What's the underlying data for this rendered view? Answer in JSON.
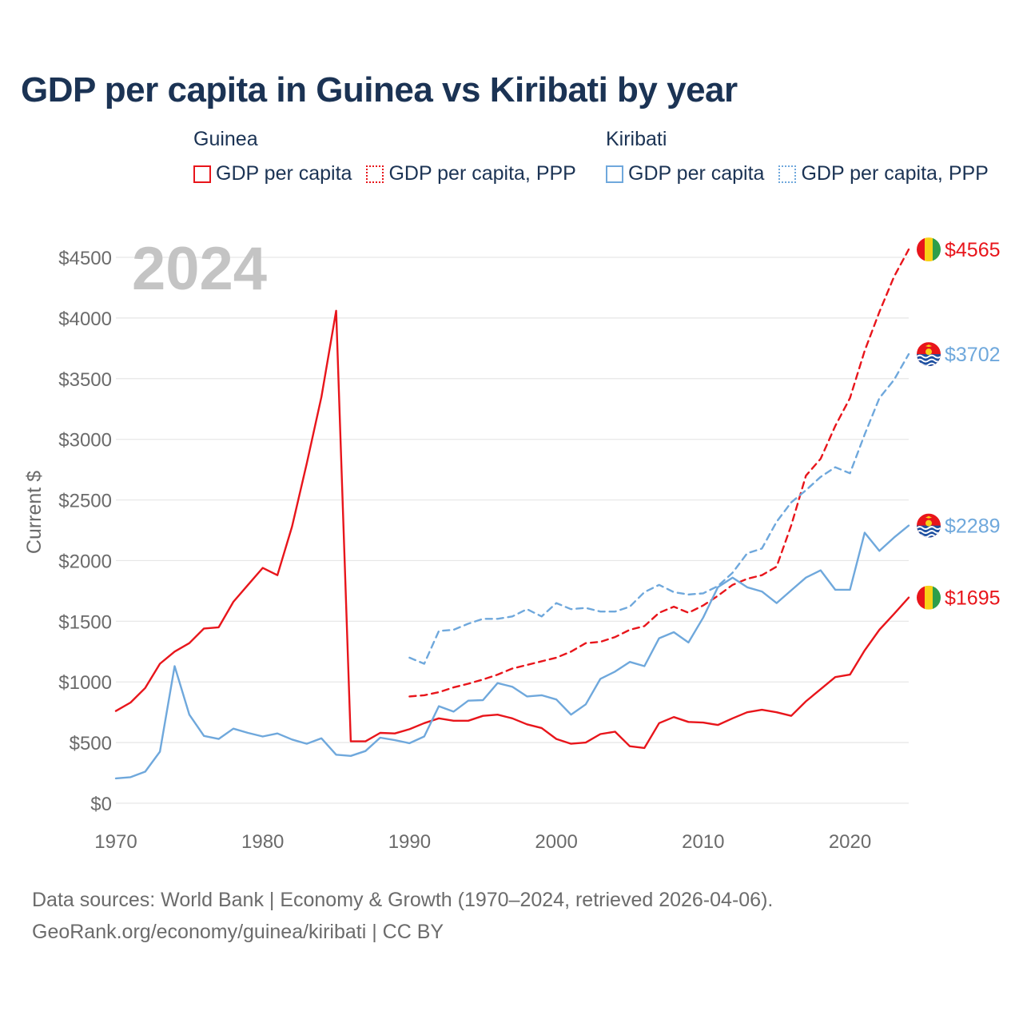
{
  "title": "GDP per capita in Guinea vs Kiribati by year",
  "legend": {
    "groups": [
      {
        "title": "Guinea",
        "items": [
          {
            "label": "GDP per capita",
            "color": "#e8151b",
            "style": "solid"
          },
          {
            "label": "GDP per capita, PPP",
            "color": "#e8151b",
            "style": "dotted"
          }
        ]
      },
      {
        "title": "Kiribati",
        "items": [
          {
            "label": "GDP per capita",
            "color": "#6fa8dc",
            "style": "solid"
          },
          {
            "label": "GDP per capita, PPP",
            "color": "#6fa8dc",
            "style": "dotted"
          }
        ]
      }
    ]
  },
  "year_label": "2024",
  "footer": {
    "line1": "Data sources: World Bank | Economy & Growth (1970–2024, retrieved 2026-04-06).",
    "line2": "GeoRank.org/economy/guinea/kiribati | CC BY"
  },
  "chart_data": {
    "type": "line",
    "title": "GDP per capita in Guinea vs Kiribati by year",
    "xlabel": "",
    "ylabel": "Current $",
    "xlim": [
      1970,
      2024
    ],
    "ylim": [
      0,
      4500
    ],
    "x_ticks": [
      1970,
      1980,
      1990,
      2000,
      2010,
      2020
    ],
    "y_ticks": [
      0,
      500,
      1000,
      1500,
      2000,
      2500,
      3000,
      3500,
      4000,
      4500
    ],
    "y_tick_labels": [
      "$0",
      "$500",
      "$1000",
      "$1500",
      "$2000",
      "$2500",
      "$3000",
      "$3500",
      "$4000",
      "$4500"
    ],
    "grid": true,
    "series": [
      {
        "name": "Guinea GDP per capita",
        "country": "Guinea",
        "color": "#e8151b",
        "dash": "solid",
        "end_label": "$1695",
        "flag": "guinea",
        "x": [
          1970,
          1971,
          1972,
          1973,
          1974,
          1975,
          1976,
          1977,
          1978,
          1979,
          1980,
          1981,
          1982,
          1983,
          1984,
          1985,
          1986,
          1987,
          1988,
          1989,
          1990,
          1991,
          1992,
          1993,
          1994,
          1995,
          1996,
          1997,
          1998,
          1999,
          2000,
          2001,
          2002,
          2003,
          2004,
          2005,
          2006,
          2007,
          2008,
          2009,
          2010,
          2011,
          2012,
          2013,
          2014,
          2015,
          2016,
          2017,
          2018,
          2019,
          2020,
          2021,
          2022,
          2023,
          2024
        ],
        "values": [
          760,
          830,
          950,
          1150,
          1250,
          1320,
          1440,
          1450,
          1660,
          1800,
          1940,
          1880,
          2280,
          2800,
          3350,
          4060,
          510,
          510,
          580,
          575,
          610,
          660,
          700,
          680,
          680,
          720,
          730,
          700,
          650,
          620,
          530,
          490,
          500,
          570,
          590,
          470,
          455,
          660,
          710,
          670,
          665,
          645,
          700,
          750,
          770,
          750,
          720,
          840,
          940,
          1040,
          1060,
          1260,
          1430,
          1560,
          1695
        ]
      },
      {
        "name": "Guinea GDP per capita, PPP",
        "country": "Guinea",
        "color": "#e8151b",
        "dash": "dashed",
        "end_label": "$4565",
        "flag": "guinea",
        "x": [
          1990,
          1991,
          1992,
          1993,
          1994,
          1995,
          1996,
          1997,
          1998,
          1999,
          2000,
          2001,
          2002,
          2003,
          2004,
          2005,
          2006,
          2007,
          2008,
          2009,
          2010,
          2011,
          2012,
          2013,
          2014,
          2015,
          2016,
          2017,
          2018,
          2019,
          2020,
          2021,
          2022,
          2023,
          2024
        ],
        "values": [
          880,
          890,
          915,
          955,
          985,
          1020,
          1060,
          1110,
          1140,
          1170,
          1200,
          1250,
          1320,
          1330,
          1370,
          1430,
          1460,
          1570,
          1620,
          1570,
          1630,
          1710,
          1800,
          1850,
          1880,
          1950,
          2290,
          2700,
          2840,
          3110,
          3340,
          3730,
          4050,
          4340,
          4565
        ]
      },
      {
        "name": "Kiribati GDP per capita",
        "country": "Kiribati",
        "color": "#6fa8dc",
        "dash": "solid",
        "end_label": "$2289",
        "flag": "kiribati",
        "x": [
          1970,
          1971,
          1972,
          1973,
          1974,
          1975,
          1976,
          1977,
          1978,
          1979,
          1980,
          1981,
          1982,
          1983,
          1984,
          1985,
          1986,
          1987,
          1988,
          1989,
          1990,
          1991,
          1992,
          1993,
          1994,
          1995,
          1996,
          1997,
          1998,
          1999,
          2000,
          2001,
          2002,
          2003,
          2004,
          2005,
          2006,
          2007,
          2008,
          2009,
          2010,
          2011,
          2012,
          2013,
          2014,
          2015,
          2016,
          2017,
          2018,
          2019,
          2020,
          2021,
          2022,
          2023,
          2024
        ],
        "values": [
          205,
          215,
          260,
          425,
          1130,
          730,
          555,
          530,
          615,
          580,
          550,
          575,
          525,
          490,
          535,
          400,
          390,
          430,
          540,
          520,
          495,
          550,
          800,
          755,
          845,
          850,
          990,
          960,
          880,
          890,
          855,
          730,
          815,
          1025,
          1085,
          1165,
          1130,
          1360,
          1410,
          1325,
          1530,
          1780,
          1860,
          1780,
          1745,
          1650,
          1755,
          1860,
          1920,
          1760,
          1760,
          2230,
          2080,
          2190,
          2289
        ]
      },
      {
        "name": "Kiribati GDP per capita, PPP",
        "country": "Kiribati",
        "color": "#6fa8dc",
        "dash": "dashed",
        "end_label": "$3702",
        "flag": "kiribati",
        "x": [
          1990,
          1991,
          1992,
          1993,
          1994,
          1995,
          1996,
          1997,
          1998,
          1999,
          2000,
          2001,
          2002,
          2003,
          2004,
          2005,
          2006,
          2007,
          2008,
          2009,
          2010,
          2011,
          2012,
          2013,
          2014,
          2015,
          2016,
          2017,
          2018,
          2019,
          2020,
          2021,
          2022,
          2023,
          2024
        ],
        "values": [
          1200,
          1150,
          1420,
          1430,
          1480,
          1520,
          1520,
          1540,
          1600,
          1540,
          1650,
          1600,
          1610,
          1580,
          1580,
          1620,
          1740,
          1800,
          1740,
          1720,
          1730,
          1790,
          1900,
          2060,
          2100,
          2320,
          2480,
          2580,
          2690,
          2770,
          2720,
          3040,
          3340,
          3490,
          3702
        ]
      }
    ]
  }
}
